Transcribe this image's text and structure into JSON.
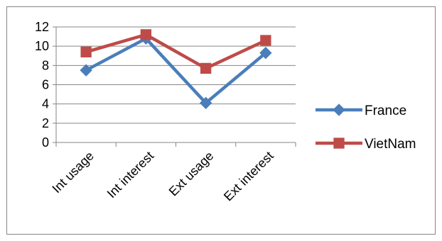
{
  "chart_data": {
    "type": "line",
    "categories": [
      "Int usage",
      "Int interest",
      "Ext usage",
      "Ext interest"
    ],
    "series": [
      {
        "name": "France",
        "values": [
          7.5,
          10.8,
          4.1,
          9.3
        ],
        "color": "#4a7ebb",
        "marker": "diamond"
      },
      {
        "name": "VietNam",
        "values": [
          9.4,
          11.2,
          7.7,
          10.6
        ],
        "color": "#be4b48",
        "marker": "square"
      }
    ],
    "ylim": [
      0,
      12
    ],
    "yticks": [
      0,
      2,
      4,
      6,
      8,
      10,
      12
    ],
    "grid": true,
    "legend_position": "right"
  }
}
